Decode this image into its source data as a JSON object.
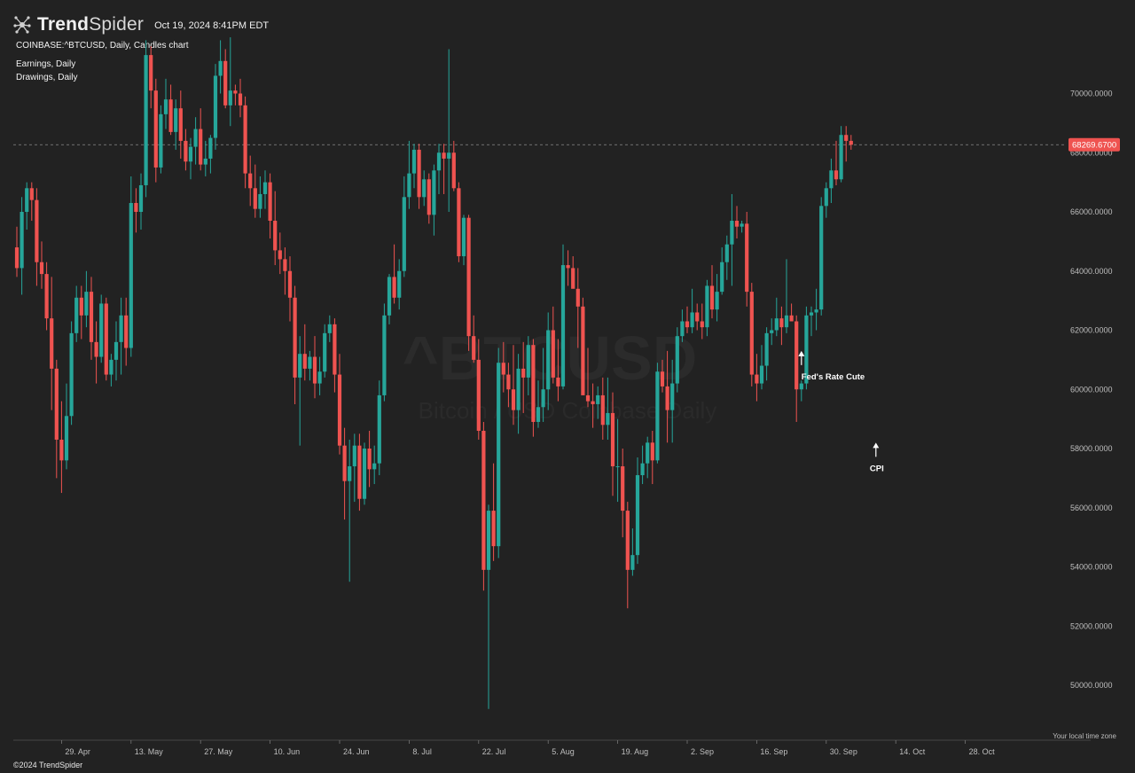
{
  "app": {
    "brand_prefix": "Trend",
    "brand_suffix": "Spider",
    "datetime": "Oct 19, 2024 8:41PM EDT",
    "symbol_line": "COINBASE:^BTCUSD, Daily, Candles chart",
    "earnings_line": "Earnings, Daily",
    "drawings_line": "Drawings, Daily",
    "copyright": "©2024 TrendSpider",
    "timezone_note": "Your local time zone",
    "watermark_symbol": "^BTCUSD",
    "watermark_desc": "Bitcoin / USD Coinbase Daily"
  },
  "colors": {
    "up": "#26a69a",
    "down": "#ef5350",
    "background": "#222222",
    "price_tag": "#ef5350"
  },
  "chart_data": {
    "type": "candlestick",
    "current_price": 68269.67,
    "current_price_label": "68269.6700",
    "ylim": [
      48500,
      73500
    ],
    "y_ticks": [
      50000,
      52000,
      54000,
      56000,
      58000,
      60000,
      62000,
      64000,
      66000,
      68000,
      70000
    ],
    "y_tick_labels": [
      "50000.0000",
      "52000.0000",
      "54000.0000",
      "56000.0000",
      "58000.0000",
      "60000.0000",
      "62000.0000",
      "64000.0000",
      "66000.0000",
      "68000.0000",
      "70000.0000"
    ],
    "x_tick_labels": [
      "29. Apr",
      "13. May",
      "27. May",
      "10. Jun",
      "24. Jun",
      "8. Jul",
      "22. Jul",
      "5. Aug",
      "19. Aug",
      "2. Sep",
      "16. Sep",
      "30. Sep",
      "14. Oct",
      "28. Oct"
    ],
    "x_tick_day_index": [
      9,
      23,
      37,
      51,
      65,
      79,
      93,
      107,
      121,
      135,
      149,
      163,
      177,
      191
    ],
    "start_date": "2024-04-20",
    "candles": [
      [
        64800,
        65500,
        63800,
        64100
      ],
      [
        64100,
        66500,
        63200,
        66000
      ],
      [
        66000,
        67000,
        65400,
        66800
      ],
      [
        66800,
        67000,
        65700,
        66400
      ],
      [
        66400,
        66800,
        63500,
        64300
      ],
      [
        64300,
        65000,
        63400,
        63900
      ],
      [
        63900,
        64300,
        62000,
        62400
      ],
      [
        62400,
        63800,
        59300,
        60700
      ],
      [
        60700,
        61000,
        57000,
        58300
      ],
      [
        58300,
        59600,
        56500,
        57600
      ],
      [
        57600,
        60200,
        57300,
        59100
      ],
      [
        59100,
        62300,
        58800,
        61900
      ],
      [
        61900,
        63500,
        61600,
        63100
      ],
      [
        63100,
        63500,
        61700,
        62500
      ],
      [
        62500,
        64000,
        62100,
        63300
      ],
      [
        63300,
        63800,
        61000,
        61600
      ],
      [
        61600,
        62300,
        60200,
        61100
      ],
      [
        61100,
        63200,
        60900,
        62900
      ],
      [
        62900,
        63100,
        60300,
        60500
      ],
      [
        60500,
        61200,
        60100,
        61000
      ],
      [
        61000,
        62300,
        60300,
        61600
      ],
      [
        61600,
        63100,
        60500,
        62500
      ],
      [
        62500,
        63100,
        60800,
        61400
      ],
      [
        61400,
        67200,
        61100,
        66300
      ],
      [
        66300,
        66800,
        65300,
        66000
      ],
      [
        66000,
        67300,
        65400,
        66900
      ],
      [
        66900,
        71800,
        66500,
        71300
      ],
      [
        71300,
        71600,
        69500,
        70100
      ],
      [
        70100,
        70500,
        67000,
        67500
      ],
      [
        67500,
        69600,
        67300,
        69300
      ],
      [
        69300,
        70500,
        68800,
        69800
      ],
      [
        69800,
        70300,
        68600,
        68700
      ],
      [
        68700,
        69800,
        68100,
        69500
      ],
      [
        69500,
        70100,
        67800,
        68400
      ],
      [
        68400,
        68800,
        67400,
        67700
      ],
      [
        67700,
        68500,
        67100,
        68200
      ],
      [
        68200,
        69200,
        67600,
        68800
      ],
      [
        68800,
        69500,
        67400,
        67600
      ],
      [
        67600,
        68400,
        67200,
        67800
      ],
      [
        67800,
        68600,
        67300,
        68500
      ],
      [
        68500,
        71000,
        68100,
        70600
      ],
      [
        70600,
        71800,
        70000,
        71100
      ],
      [
        71100,
        71500,
        69500,
        69600
      ],
      [
        69600,
        71900,
        68900,
        70100
      ],
      [
        70100,
        70300,
        69600,
        70000
      ],
      [
        70000,
        70500,
        69200,
        69600
      ],
      [
        69600,
        69900,
        66800,
        67300
      ],
      [
        67300,
        67900,
        66200,
        66800
      ],
      [
        66800,
        67600,
        65800,
        66100
      ],
      [
        66100,
        67200,
        65800,
        66600
      ],
      [
        66600,
        67400,
        66100,
        67000
      ],
      [
        67000,
        67300,
        65100,
        65700
      ],
      [
        65700,
        66700,
        64200,
        64700
      ],
      [
        64700,
        65300,
        63900,
        64400
      ],
      [
        64400,
        64800,
        63200,
        64000
      ],
      [
        64000,
        64500,
        62300,
        63100
      ],
      [
        63100,
        63500,
        59500,
        60400
      ],
      [
        60400,
        61800,
        58100,
        61200
      ],
      [
        61200,
        62200,
        60300,
        60700
      ],
      [
        60700,
        61300,
        60300,
        61100
      ],
      [
        61100,
        61800,
        59700,
        60200
      ],
      [
        60200,
        61100,
        59800,
        60600
      ],
      [
        60600,
        62200,
        60400,
        61900
      ],
      [
        61900,
        62500,
        61600,
        62200
      ],
      [
        62200,
        62400,
        59900,
        60500
      ],
      [
        60500,
        61200,
        57800,
        58100
      ],
      [
        58100,
        58700,
        55600,
        56900
      ],
      [
        56900,
        58300,
        53500,
        57400
      ],
      [
        57400,
        58500,
        56200,
        58100
      ],
      [
        58100,
        58500,
        55900,
        56300
      ],
      [
        56300,
        58200,
        56100,
        58000
      ],
      [
        58000,
        58600,
        56700,
        57300
      ],
      [
        57300,
        58100,
        56800,
        57500
      ],
      [
        57500,
        60300,
        57100,
        59800
      ],
      [
        59800,
        62900,
        59600,
        62500
      ],
      [
        62500,
        63900,
        62200,
        63800
      ],
      [
        63800,
        64900,
        62900,
        63100
      ],
      [
        63100,
        64400,
        62700,
        64000
      ],
      [
        64000,
        67200,
        63800,
        66500
      ],
      [
        66500,
        68400,
        66100,
        67300
      ],
      [
        67300,
        68300,
        66800,
        68100
      ],
      [
        68100,
        68300,
        66100,
        66500
      ],
      [
        66500,
        67400,
        66200,
        67100
      ],
      [
        67100,
        67300,
        65600,
        65900
      ],
      [
        65900,
        67600,
        65200,
        67400
      ],
      [
        67400,
        68300,
        66600,
        68000
      ],
      [
        68000,
        68300,
        66600,
        67800
      ],
      [
        67800,
        71500,
        66000,
        68000
      ],
      [
        68000,
        68400,
        66700,
        66800
      ],
      [
        66800,
        67000,
        64300,
        64500
      ],
      [
        64500,
        65900,
        64200,
        65800
      ],
      [
        65800,
        65900,
        61300,
        61800
      ],
      [
        61800,
        62500,
        60900,
        61000
      ],
      [
        61000,
        61700,
        58300,
        58600
      ],
      [
        58600,
        58900,
        53200,
        53900
      ],
      [
        53900,
        56100,
        49200,
        55900
      ],
      [
        55900,
        57500,
        54200,
        54700
      ],
      [
        54700,
        61400,
        54300,
        60900
      ],
      [
        60900,
        61600,
        59900,
        60500
      ],
      [
        60500,
        60900,
        59400,
        60000
      ],
      [
        60000,
        61500,
        58800,
        59300
      ],
      [
        59300,
        61200,
        58500,
        60700
      ],
      [
        60700,
        61600,
        59200,
        60400
      ],
      [
        60400,
        61800,
        59800,
        61500
      ],
      [
        61500,
        61700,
        58400,
        58900
      ],
      [
        58900,
        60300,
        58700,
        59400
      ],
      [
        59400,
        61400,
        58900,
        60000
      ],
      [
        60000,
        62600,
        59300,
        62000
      ],
      [
        62000,
        62800,
        60200,
        60400
      ],
      [
        60400,
        61700,
        59600,
        60100
      ],
      [
        60100,
        64900,
        60000,
        64200
      ],
      [
        64200,
        64700,
        63500,
        64100
      ],
      [
        64100,
        64500,
        63600,
        63400
      ],
      [
        63400,
        64100,
        61400,
        62800
      ],
      [
        62800,
        63100,
        59900,
        59800
      ],
      [
        59800,
        61400,
        59400,
        59600
      ],
      [
        59600,
        60200,
        58700,
        59500
      ],
      [
        59500,
        60100,
        59000,
        59800
      ],
      [
        59800,
        60400,
        58300,
        58800
      ],
      [
        58800,
        60400,
        58300,
        59200
      ],
      [
        59200,
        59900,
        56400,
        57400
      ],
      [
        57400,
        59000,
        56200,
        57400
      ],
      [
        57400,
        58000,
        55000,
        55900
      ],
      [
        55900,
        56200,
        52600,
        53900
      ],
      [
        53900,
        55300,
        53700,
        54400
      ],
      [
        54400,
        57700,
        54100,
        57100
      ],
      [
        57100,
        58100,
        56800,
        57500
      ],
      [
        57500,
        58400,
        57000,
        58200
      ],
      [
        58200,
        58600,
        56800,
        57600
      ],
      [
        57600,
        60900,
        57500,
        60600
      ],
      [
        60600,
        61000,
        59900,
        60100
      ],
      [
        60100,
        61300,
        58200,
        59300
      ],
      [
        59300,
        61000,
        58200,
        60200
      ],
      [
        60200,
        62100,
        59900,
        61800
      ],
      [
        61800,
        62700,
        61600,
        62300
      ],
      [
        62300,
        62800,
        61900,
        62100
      ],
      [
        62100,
        63400,
        61900,
        62600
      ],
      [
        62600,
        62900,
        62000,
        62300
      ],
      [
        62300,
        62900,
        61700,
        62100
      ],
      [
        62100,
        63700,
        61800,
        63500
      ],
      [
        63500,
        64200,
        62400,
        62700
      ],
      [
        62700,
        63900,
        62300,
        63300
      ],
      [
        63300,
        64800,
        63200,
        64300
      ],
      [
        64300,
        65200,
        63700,
        64900
      ],
      [
        64900,
        66600,
        63500,
        65700
      ],
      [
        65700,
        66200,
        65100,
        65500
      ],
      [
        65500,
        65700,
        65300,
        65600
      ],
      [
        65600,
        66000,
        62800,
        63300
      ],
      [
        63300,
        63600,
        60100,
        60500
      ],
      [
        60500,
        61200,
        59600,
        60200
      ],
      [
        60200,
        61500,
        60000,
        60800
      ],
      [
        60800,
        62100,
        60300,
        61900
      ],
      [
        61900,
        62400,
        61500,
        62000
      ],
      [
        62000,
        63100,
        61800,
        62400
      ],
      [
        62400,
        62800,
        61500,
        62100
      ],
      [
        62100,
        64400,
        61900,
        62500
      ],
      [
        62500,
        62900,
        62300,
        62300
      ],
      [
        62300,
        62500,
        58900,
        60000
      ],
      [
        60000,
        60300,
        59600,
        60200
      ],
      [
        60200,
        62800,
        60000,
        62500
      ],
      [
        62500,
        62800,
        61800,
        62600
      ],
      [
        62600,
        63400,
        62000,
        62700
      ],
      [
        62700,
        66500,
        62500,
        66200
      ],
      [
        66200,
        67000,
        65800,
        66800
      ],
      [
        66800,
        67800,
        66300,
        67400
      ],
      [
        67400,
        68400,
        66900,
        67100
      ],
      [
        67100,
        68900,
        67000,
        68600
      ],
      [
        68600,
        68900,
        67700,
        68400
      ],
      [
        68400,
        68600,
        68100,
        68270
      ]
    ],
    "annotations": [
      {
        "text": "Fed's Rate Cute",
        "day_index": 158,
        "price": 61300
      },
      {
        "text": "CPI",
        "day_index": 173,
        "price": 58200
      }
    ]
  }
}
